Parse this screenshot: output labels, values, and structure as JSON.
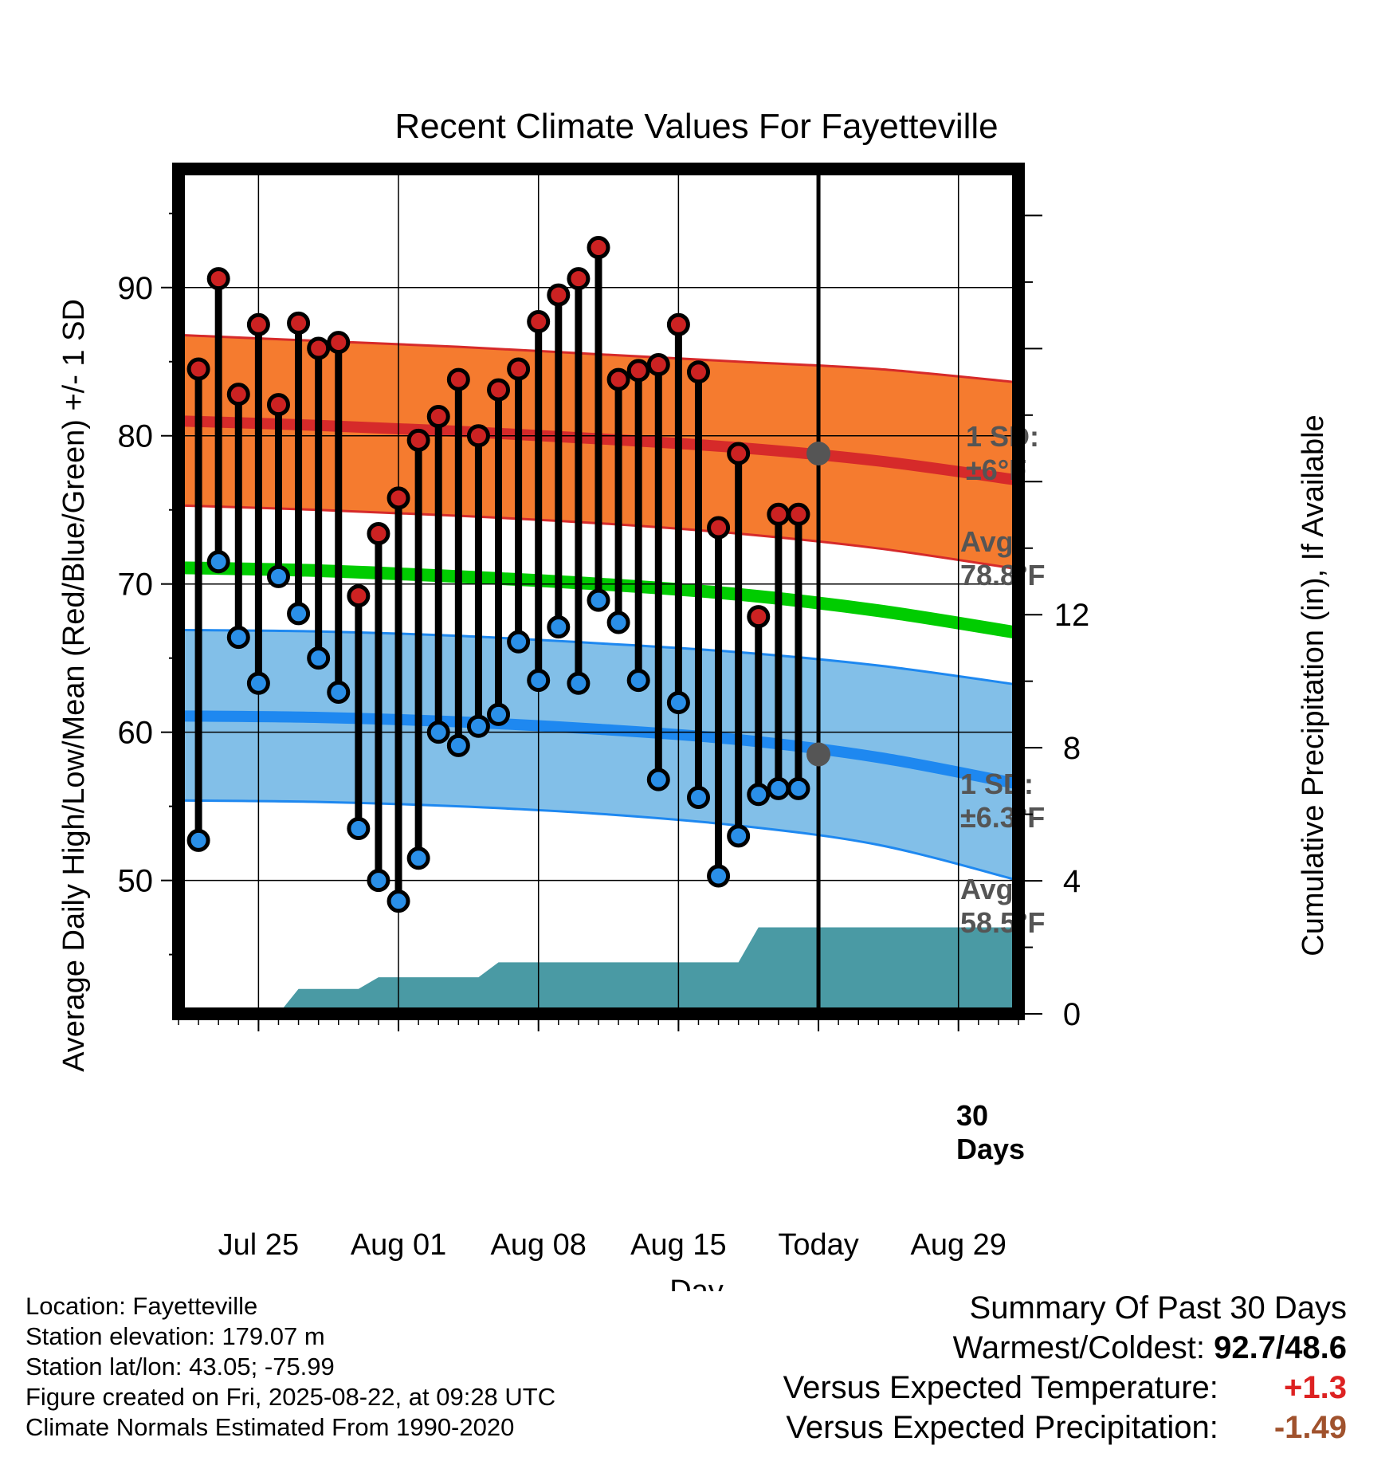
{
  "chart_data": {
    "type": "line",
    "title": "Recent Climate Values For Fayetteville",
    "xlabel": "Day",
    "ylabel_left": "Average Daily High/Low/Mean (Red/Blue/Green) +/- 1 SD",
    "ylabel_right": "Cumulative Precipitation (in), If Available",
    "x_range": [
      "2025-07-21",
      "2025-09-01"
    ],
    "y_left_range": [
      41,
      98
    ],
    "y_right_range": [
      0,
      25.4
    ],
    "x_ticks": [
      {
        "date": "2025-07-25",
        "label": "Jul 25"
      },
      {
        "date": "2025-08-01",
        "label": "Aug 01"
      },
      {
        "date": "2025-08-08",
        "label": "Aug 08"
      },
      {
        "date": "2025-08-15",
        "label": "Aug 15"
      },
      {
        "date": "2025-08-22",
        "label": "Today"
      },
      {
        "date": "2025-08-29",
        "label": "Aug 29"
      }
    ],
    "y_left_ticks": [
      50,
      60,
      70,
      80,
      90
    ],
    "y_right_ticks": [
      0,
      4,
      8,
      12
    ],
    "today": "2025-08-22",
    "normals": {
      "dates": [
        "2025-07-21",
        "2025-07-28",
        "2025-08-04",
        "2025-08-11",
        "2025-08-18",
        "2025-08-25",
        "2025-09-01"
      ],
      "high_mean": [
        81.0,
        80.7,
        80.3,
        79.8,
        79.2,
        78.3,
        77.0
      ],
      "high_upper": [
        86.8,
        86.4,
        86.0,
        85.5,
        85.0,
        84.5,
        83.6
      ],
      "high_lower": [
        75.3,
        75.0,
        74.6,
        74.1,
        73.4,
        72.4,
        71.0
      ],
      "mean": [
        71.1,
        70.9,
        70.5,
        70.0,
        69.3,
        68.2,
        66.7
      ],
      "low_mean": [
        61.1,
        61.0,
        60.7,
        60.2,
        59.5,
        58.3,
        56.5
      ],
      "low_upper": [
        66.9,
        66.8,
        66.5,
        66.0,
        65.4,
        64.5,
        63.2
      ],
      "low_lower": [
        55.4,
        55.3,
        55.0,
        54.5,
        53.7,
        52.4,
        50.0
      ]
    },
    "series": [
      {
        "name": "High",
        "color": "#cc2222",
        "dates": [
          "2025-07-22",
          "2025-07-23",
          "2025-07-24",
          "2025-07-25",
          "2025-07-26",
          "2025-07-27",
          "2025-07-28",
          "2025-07-29",
          "2025-07-30",
          "2025-07-31",
          "2025-08-01",
          "2025-08-02",
          "2025-08-03",
          "2025-08-04",
          "2025-08-05",
          "2025-08-06",
          "2025-08-07",
          "2025-08-08",
          "2025-08-09",
          "2025-08-10",
          "2025-08-11",
          "2025-08-12",
          "2025-08-13",
          "2025-08-14",
          "2025-08-15",
          "2025-08-16",
          "2025-08-17",
          "2025-08-18",
          "2025-08-19",
          "2025-08-20",
          "2025-08-21"
        ],
        "values": [
          84.5,
          90.6,
          82.8,
          87.5,
          82.1,
          87.6,
          85.9,
          86.3,
          69.2,
          73.4,
          75.8,
          79.7,
          81.3,
          83.8,
          80.0,
          83.1,
          84.5,
          87.7,
          89.5,
          90.6,
          92.7,
          83.8,
          84.4,
          84.8,
          87.5,
          84.3,
          73.8,
          78.8,
          67.8,
          74.7,
          74.7
        ]
      },
      {
        "name": "Low",
        "color": "#2a8fe8",
        "dates": [
          "2025-07-22",
          "2025-07-23",
          "2025-07-24",
          "2025-07-25",
          "2025-07-26",
          "2025-07-27",
          "2025-07-28",
          "2025-07-29",
          "2025-07-30",
          "2025-07-31",
          "2025-08-01",
          "2025-08-02",
          "2025-08-03",
          "2025-08-04",
          "2025-08-05",
          "2025-08-06",
          "2025-08-07",
          "2025-08-08",
          "2025-08-09",
          "2025-08-10",
          "2025-08-11",
          "2025-08-12",
          "2025-08-13",
          "2025-08-14",
          "2025-08-15",
          "2025-08-16",
          "2025-08-17",
          "2025-08-18",
          "2025-08-19",
          "2025-08-20",
          "2025-08-21"
        ],
        "values": [
          52.7,
          71.5,
          66.4,
          63.3,
          70.5,
          68.0,
          65.0,
          62.7,
          53.5,
          50.0,
          48.6,
          51.5,
          60.0,
          59.1,
          60.4,
          61.2,
          66.1,
          63.5,
          67.1,
          63.3,
          68.9,
          67.4,
          63.5,
          56.8,
          62.0,
          55.6,
          50.3,
          53.0,
          55.8,
          56.2,
          56.2
        ]
      }
    ],
    "precipitation": {
      "dates": [
        "2025-07-21",
        "2025-07-23",
        "2025-07-24",
        "2025-07-26",
        "2025-07-27",
        "2025-07-30",
        "2025-07-31",
        "2025-08-05",
        "2025-08-06",
        "2025-08-18",
        "2025-08-19",
        "2025-09-01"
      ],
      "values": [
        0,
        0,
        0,
        0,
        0.75,
        0.75,
        1.1,
        1.1,
        1.55,
        1.55,
        2.6,
        2.6
      ]
    },
    "annotations": {
      "high_sd": [
        "1 SD:",
        "±6°F"
      ],
      "high_avg": [
        "Avg:",
        "78.8°F"
      ],
      "low_sd": [
        "1 SD:",
        "±6.3°F"
      ],
      "low_avg": [
        "Avg:",
        "58.5°F"
      ],
      "window": [
        "30",
        "Days"
      ],
      "high_avg_value": 78.8,
      "low_avg_value": 58.5
    },
    "colors": {
      "high_band": "#f57b2f",
      "high_line": "#d62a2a",
      "mean_line": "#00cc00",
      "low_band": "#82bfe8",
      "low_line": "#1e88f0",
      "precip": "#4a9aa4",
      "annotation": "#555555"
    }
  },
  "station_info": [
    "Location: Fayetteville",
    "Station elevation: 179.07 m",
    "Station lat/lon: 43.05; -75.99",
    "Figure created on Fri, 2025-08-22, at 09:28 UTC",
    "Climate Normals Estimated From 1990-2020"
  ],
  "summary": {
    "title": "Summary Of Past 30 Days",
    "warm_cold_label": "Warmest/Coldest:",
    "warm_value": "92.7",
    "cold_value": "48.6",
    "temp_label": "Versus Expected Temperature:",
    "temp_value": "+1.3",
    "temp_color": "#dd2222",
    "precip_label": "Versus Expected Precipitation:",
    "precip_value": "-1.49",
    "precip_color": "#a0522d"
  }
}
